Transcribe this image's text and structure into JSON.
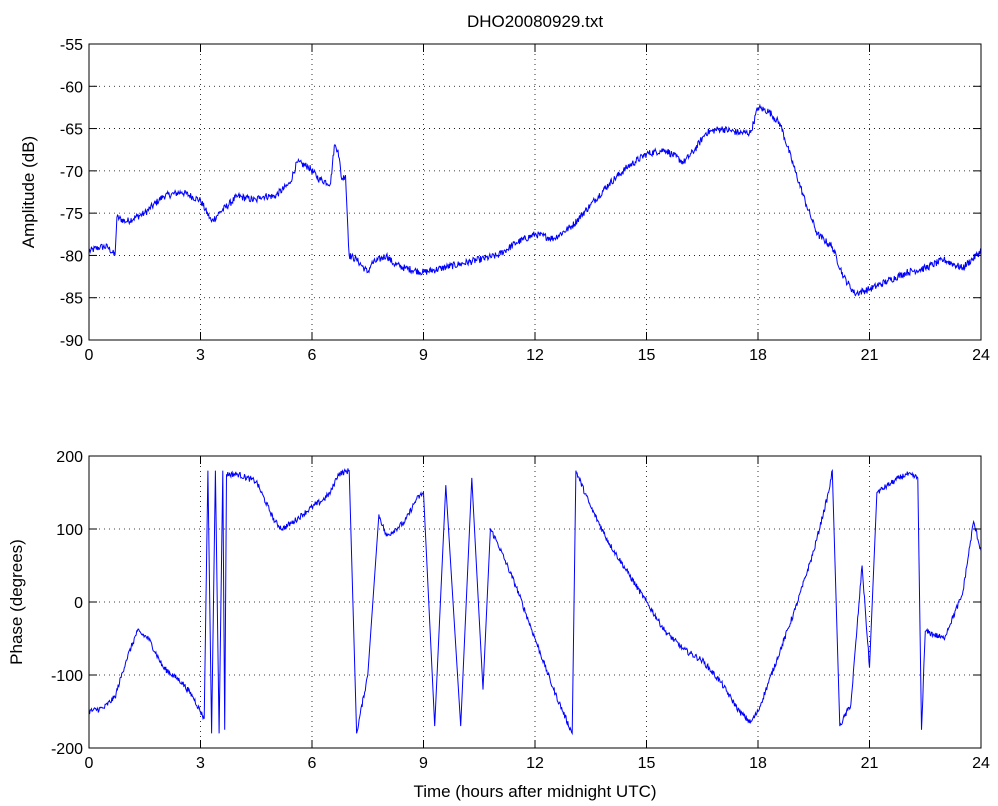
{
  "chart_data": [
    {
      "type": "line",
      "title": "DHO20080929.txt",
      "xlabel": "",
      "ylabel": "Amplitude (dB)",
      "xlim": [
        0,
        24
      ],
      "ylim": [
        -90,
        -55
      ],
      "xticks": [
        0,
        3,
        6,
        9,
        12,
        15,
        18,
        21,
        24
      ],
      "yticks": [
        -90,
        -85,
        -80,
        -75,
        -70,
        -65,
        -60,
        -55
      ],
      "grid": true,
      "color": "#0000ff",
      "series": [
        {
          "x": [
            0,
            0.3,
            0.5,
            0.7,
            0.75,
            1.0,
            1.5,
            2.0,
            2.5,
            3.0,
            3.3,
            3.5,
            4.0,
            4.5,
            4.6,
            5.0,
            5.4,
            5.6,
            5.9,
            6.2,
            6.5,
            6.6,
            6.7,
            6.8,
            6.9,
            7.0,
            7.2,
            7.5,
            7.6,
            8.0,
            8.2,
            8.5,
            9.0,
            9.5,
            10.0,
            10.5,
            11.0,
            11.5,
            12.0,
            12.5,
            13.0,
            13.5,
            14.0,
            14.5,
            15.0,
            15.5,
            16.0,
            16.3,
            16.6,
            17.0,
            17.5,
            17.8,
            18.0,
            18.3,
            18.6,
            19.0,
            19.3,
            19.6,
            20.0,
            20.3,
            20.6,
            21.0,
            21.5,
            22.0,
            22.5,
            23.0,
            23.5,
            24.0
          ],
          "y": [
            -79.5,
            -79.0,
            -79.0,
            -80.0,
            -75.5,
            -76.0,
            -75.0,
            -73.0,
            -72.5,
            -73.5,
            -76.0,
            -75.0,
            -73.0,
            -73.5,
            -73.0,
            -73.0,
            -71.5,
            -69.0,
            -69.5,
            -71.0,
            -71.5,
            -67.0,
            -67.5,
            -71.0,
            -70.5,
            -80.0,
            -80.5,
            -82.0,
            -81.0,
            -80.0,
            -81.0,
            -81.5,
            -82.0,
            -81.5,
            -81.0,
            -80.5,
            -80.0,
            -78.5,
            -77.5,
            -78.0,
            -76.5,
            -74.0,
            -71.5,
            -69.5,
            -68.0,
            -67.5,
            -69.0,
            -67.5,
            -65.5,
            -65.0,
            -65.5,
            -65.5,
            -62.5,
            -63.0,
            -64.5,
            -70.0,
            -74.0,
            -77.5,
            -79.0,
            -82.5,
            -84.5,
            -84.0,
            -83.0,
            -82.0,
            -81.5,
            -80.5,
            -81.5,
            -79.5
          ]
        }
      ]
    },
    {
      "type": "line",
      "title": "",
      "xlabel": "Time (hours after midnight UTC)",
      "ylabel": "Phase (degrees)",
      "xlim": [
        0,
        24
      ],
      "ylim": [
        -200,
        200
      ],
      "xticks": [
        0,
        3,
        6,
        9,
        12,
        15,
        18,
        21,
        24
      ],
      "yticks": [
        -200,
        -100,
        0,
        100,
        200
      ],
      "grid": true,
      "color": "#0000ff",
      "series": [
        {
          "x": [
            0,
            0.4,
            0.7,
            1.0,
            1.3,
            1.6,
            2.0,
            2.5,
            2.8,
            3.1,
            3.2,
            3.3,
            3.4,
            3.5,
            3.6,
            3.65,
            3.7,
            4.0,
            4.5,
            5.0,
            5.2,
            5.5,
            6.0,
            6.3,
            6.5,
            6.7,
            7.0,
            7.2,
            7.5,
            7.8,
            8.0,
            8.5,
            8.8,
            9.0,
            9.3,
            9.6,
            10.0,
            10.3,
            10.6,
            10.8,
            11.0,
            11.5,
            12.0,
            12.5,
            13.0,
            13.1,
            13.5,
            14.0,
            14.5,
            15.0,
            15.5,
            16.0,
            16.5,
            17.0,
            17.5,
            17.8,
            18.0,
            18.5,
            19.0,
            19.5,
            19.9,
            20.0,
            20.2,
            20.5,
            20.8,
            21.0,
            21.2,
            21.5,
            21.8,
            22.0,
            22.3,
            22.4,
            22.5,
            23.0,
            23.5,
            23.8,
            24.0
          ],
          "y": [
            -150,
            -145,
            -130,
            -80,
            -40,
            -50,
            -90,
            -110,
            -130,
            -160,
            180,
            -180,
            180,
            -180,
            180,
            -175,
            175,
            175,
            165,
            110,
            100,
            110,
            130,
            140,
            150,
            175,
            180,
            -180,
            -100,
            120,
            90,
            110,
            140,
            150,
            -170,
            160,
            -170,
            170,
            -120,
            100,
            80,
            20,
            -50,
            -120,
            -180,
            180,
            130,
            80,
            40,
            0,
            -40,
            -65,
            -80,
            -110,
            -150,
            -165,
            -150,
            -80,
            -10,
            70,
            150,
            180,
            -170,
            -140,
            50,
            -90,
            150,
            160,
            170,
            175,
            170,
            -175,
            -40,
            -50,
            10,
            110,
            70
          ]
        }
      ]
    }
  ]
}
